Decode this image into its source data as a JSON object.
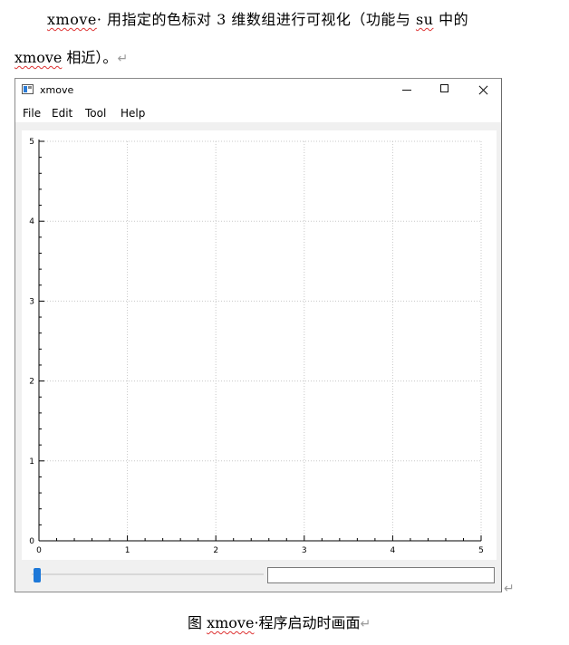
{
  "document": {
    "para_line1": {
      "cmd": "xmove",
      "text": "· 用指定的色标对 3 维数组进行可视化（功能与 ",
      "su": "su",
      "text2": " 中的"
    },
    "para_line2": {
      "cmd": "xmove",
      "text": " 相近）。",
      "mark": "↵"
    },
    "caption": {
      "prefix": "图 ",
      "cmd": "xmove",
      "text": "·程序启动时画面",
      "mark": "↵"
    },
    "window_end_mark": "↵"
  },
  "window": {
    "title": "xmove",
    "icons": {
      "app": "app-window-icon",
      "minimize": "minimize-icon",
      "maximize": "maximize-icon",
      "close": "close-icon"
    },
    "menu": [
      "File",
      "Edit",
      "Tool",
      "Help"
    ]
  },
  "chart_data": {
    "type": "scatter",
    "title": "",
    "xlabel": "",
    "ylabel": "",
    "xlim": [
      0,
      5
    ],
    "ylim": [
      0,
      5
    ],
    "x_ticks": [
      "0",
      "1",
      "2",
      "3",
      "4",
      "5"
    ],
    "y_ticks": [
      "0",
      "1",
      "2",
      "3",
      "4",
      "5"
    ],
    "grid": true,
    "series": []
  },
  "controls": {
    "slider_value": 0,
    "text_value": ""
  }
}
